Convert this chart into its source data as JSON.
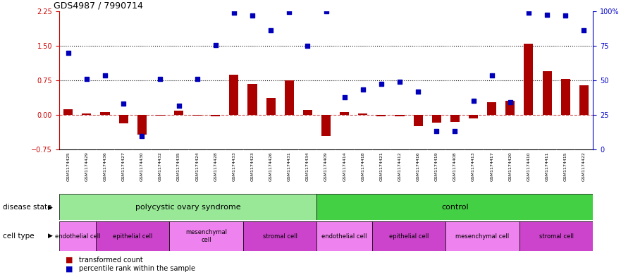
{
  "title": "GDS4987 / 7990714",
  "samples": [
    "GSM1174425",
    "GSM1174429",
    "GSM1174436",
    "GSM1174427",
    "GSM1174430",
    "GSM1174432",
    "GSM1174435",
    "GSM1174424",
    "GSM1174428",
    "GSM1174433",
    "GSM1174423",
    "GSM1174426",
    "GSM1174431",
    "GSM1174434",
    "GSM1174409",
    "GSM1174414",
    "GSM1174418",
    "GSM1174421",
    "GSM1174412",
    "GSM1174416",
    "GSM1174419",
    "GSM1174408",
    "GSM1174413",
    "GSM1174417",
    "GSM1174420",
    "GSM1174410",
    "GSM1174411",
    "GSM1174415",
    "GSM1174422"
  ],
  "transformed_count": [
    0.12,
    0.03,
    0.07,
    -0.18,
    -0.42,
    -0.02,
    0.1,
    -0.02,
    -0.03,
    0.87,
    0.68,
    0.37,
    0.75,
    0.11,
    -0.45,
    0.06,
    0.03,
    -0.03,
    -0.03,
    -0.25,
    -0.17,
    -0.15,
    -0.08,
    0.28,
    0.3,
    1.55,
    0.95,
    0.78,
    0.65
  ],
  "percentile_rank_left_scale": [
    1.35,
    0.78,
    0.85,
    0.25,
    -0.45,
    0.78,
    0.2,
    0.78,
    1.52,
    2.22,
    2.15,
    1.83,
    2.23,
    1.5,
    2.25,
    0.38,
    0.55,
    0.68,
    0.72,
    0.5,
    -0.35,
    -0.35,
    0.3,
    0.85,
    0.28,
    2.22,
    2.17,
    2.15,
    1.83
  ],
  "ylim_left": [
    -0.75,
    2.25
  ],
  "left_yticks": [
    -0.75,
    0.0,
    0.75,
    1.5,
    2.25
  ],
  "right_ytick_labels": [
    "0",
    "25",
    "50",
    "75",
    "100%"
  ],
  "hlines": [
    0.75,
    1.5
  ],
  "disease_state_groups": [
    {
      "label": "polycystic ovary syndrome",
      "start": 0,
      "end": 14,
      "color": "#98E898"
    },
    {
      "label": "control",
      "start": 14,
      "end": 29,
      "color": "#44D044"
    }
  ],
  "cell_type_groups": [
    {
      "label": "endothelial cell",
      "start": 0,
      "end": 2,
      "color": "#EE82EE"
    },
    {
      "label": "epithelial cell",
      "start": 2,
      "end": 6,
      "color": "#CC44CC"
    },
    {
      "label": "mesenchymal\ncell",
      "start": 6,
      "end": 10,
      "color": "#EE82EE"
    },
    {
      "label": "stromal cell",
      "start": 10,
      "end": 14,
      "color": "#CC44CC"
    },
    {
      "label": "endothelial cell",
      "start": 14,
      "end": 17,
      "color": "#EE82EE"
    },
    {
      "label": "epithelial cell",
      "start": 17,
      "end": 21,
      "color": "#CC44CC"
    },
    {
      "label": "mesenchymal cell",
      "start": 21,
      "end": 25,
      "color": "#EE82EE"
    },
    {
      "label": "stromal cell",
      "start": 25,
      "end": 29,
      "color": "#CC44CC"
    }
  ],
  "bar_color": "#AA0000",
  "dot_color": "#0000BB",
  "zero_line_color": "#CC5555",
  "hline_color": "#111111",
  "left_axis_color": "#CC0000",
  "right_axis_color": "#0000CC",
  "xtick_bg_color": "#CCCCCC",
  "legend_bar_color": "#AA0000",
  "legend_dot_color": "#0000BB",
  "disease_state_label": "disease state",
  "cell_type_label": "cell type",
  "legend_label_bar": "transformed count",
  "legend_label_dot": "percentile rank within the sample"
}
